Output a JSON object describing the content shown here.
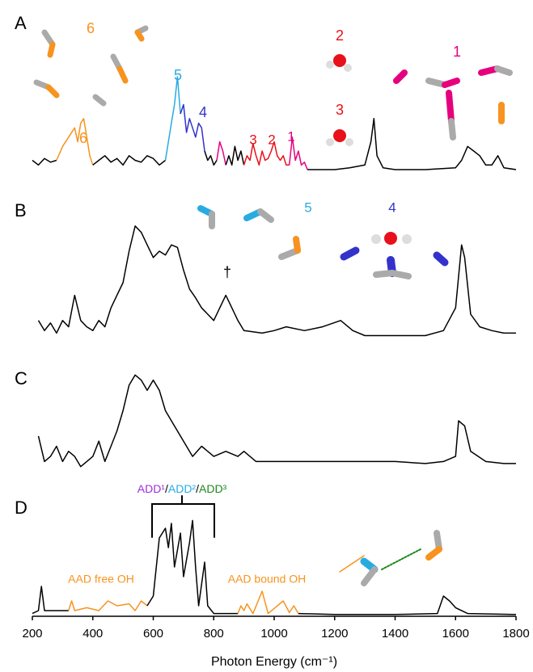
{
  "chart_data": [
    {
      "type": "line",
      "panel_label": "A",
      "xlim": [
        200,
        1800
      ],
      "ylim": [
        0,
        1
      ],
      "series": [
        {
          "color": "#000000",
          "x": [
            200,
            220,
            240,
            260,
            280
          ],
          "values": [
            0.1,
            0.05,
            0.12,
            0.08,
            0.1
          ]
        },
        {
          "color": "#f7931e",
          "x": [
            280,
            300,
            320,
            340,
            350,
            360,
            370,
            380,
            390,
            400
          ],
          "values": [
            0.1,
            0.25,
            0.35,
            0.45,
            0.3,
            0.5,
            0.55,
            0.35,
            0.15,
            0.05
          ]
        },
        {
          "color": "#000000",
          "x": [
            400,
            420,
            440,
            460,
            480,
            500,
            520,
            540,
            560,
            580,
            600,
            620,
            640
          ],
          "values": [
            0.05,
            0.1,
            0.15,
            0.08,
            0.12,
            0.05,
            0.15,
            0.1,
            0.08,
            0.15,
            0.12,
            0.05,
            0.1
          ]
        },
        {
          "color": "#29abe2",
          "x": [
            640,
            650,
            660,
            670,
            680,
            690
          ],
          "values": [
            0.1,
            0.3,
            0.5,
            0.7,
            1.0,
            0.6
          ]
        },
        {
          "color": "#3333cc",
          "x": [
            690,
            700,
            710,
            720,
            730,
            740,
            750,
            760,
            770
          ],
          "values": [
            0.6,
            0.7,
            0.4,
            0.55,
            0.45,
            0.35,
            0.5,
            0.45,
            0.2
          ]
        },
        {
          "color": "#000000",
          "x": [
            770,
            780,
            790,
            800,
            810
          ],
          "values": [
            0.2,
            0.1,
            0.15,
            0.05,
            0.1
          ]
        },
        {
          "color": "#e6007e",
          "x": [
            810,
            820,
            830,
            840
          ],
          "values": [
            0.1,
            0.3,
            0.2,
            0.05
          ]
        },
        {
          "color": "#000000",
          "x": [
            840,
            850,
            860,
            870,
            880,
            890,
            900
          ],
          "values": [
            0.05,
            0.15,
            0.05,
            0.25,
            0.1,
            0.2,
            0.05
          ]
        },
        {
          "color": "#e8101a",
          "x": [
            900,
            910,
            920,
            930,
            940,
            950,
            960,
            970,
            980,
            990,
            1000,
            1010,
            1020,
            1030,
            1040,
            1050
          ],
          "values": [
            0.05,
            0.15,
            0.1,
            0.28,
            0.15,
            0.05,
            0.2,
            0.1,
            0.12,
            0.2,
            0.3,
            0.15,
            0.1,
            0.15,
            0.05,
            0.05
          ]
        },
        {
          "color": "#e6007e",
          "x": [
            1050,
            1060,
            1070,
            1080,
            1090,
            1100,
            1110
          ],
          "values": [
            0.05,
            0.35,
            0.1,
            0.2,
            0.05,
            0.08,
            0
          ]
        },
        {
          "color": "#000000",
          "x": [
            1110,
            1150,
            1200,
            1250,
            1300,
            1320,
            1330,
            1340,
            1360,
            1400,
            1500,
            1600,
            1620,
            1640,
            1660,
            1680,
            1700,
            1720,
            1740,
            1760,
            1800
          ],
          "values": [
            0,
            0,
            0,
            0.02,
            0.05,
            0.3,
            0.55,
            0.15,
            0.02,
            0,
            0,
            0.02,
            0.1,
            0.25,
            0.2,
            0.15,
            0.05,
            0.05,
            0.15,
            0.02,
            0
          ]
        }
      ],
      "annotations": [
        {
          "text": "6",
          "color": "#f7931e"
        },
        {
          "text": "6",
          "color": "#f7931e"
        },
        {
          "text": "5",
          "color": "#29abe2"
        },
        {
          "text": "4",
          "color": "#3333cc"
        },
        {
          "text": "3",
          "color": "#e8101a"
        },
        {
          "text": "2",
          "color": "#e8101a"
        },
        {
          "text": "1",
          "color": "#e6007e"
        },
        {
          "text": "2",
          "color": "#e8101a"
        },
        {
          "text": "3",
          "color": "#e8101a"
        },
        {
          "text": "1",
          "color": "#e6007e"
        }
      ]
    },
    {
      "type": "line",
      "panel_label": "B",
      "xlim": [
        200,
        1800
      ],
      "ylim": [
        0,
        1
      ],
      "color": "#000000",
      "x": [
        220,
        240,
        260,
        280,
        300,
        320,
        340,
        360,
        380,
        400,
        420,
        440,
        460,
        480,
        500,
        520,
        540,
        560,
        580,
        600,
        620,
        640,
        660,
        680,
        700,
        720,
        740,
        760,
        780,
        800,
        820,
        840,
        860,
        880,
        900,
        960,
        1000,
        1040,
        1100,
        1160,
        1220,
        1260,
        1300,
        1400,
        1500,
        1560,
        1600,
        1620,
        1630,
        1650,
        1680,
        1720,
        1760,
        1800
      ],
      "values": [
        0.2,
        0.12,
        0.18,
        0.1,
        0.2,
        0.15,
        0.4,
        0.2,
        0.15,
        0.12,
        0.2,
        0.15,
        0.3,
        0.4,
        0.5,
        0.75,
        0.95,
        0.9,
        0.8,
        0.7,
        0.75,
        0.72,
        0.8,
        0.78,
        0.6,
        0.45,
        0.38,
        0.3,
        0.25,
        0.2,
        0.3,
        0.4,
        0.3,
        0.2,
        0.12,
        0.1,
        0.12,
        0.15,
        0.12,
        0.15,
        0.2,
        0.12,
        0.08,
        0.08,
        0.08,
        0.12,
        0.3,
        0.8,
        0.7,
        0.25,
        0.15,
        0.12,
        0.1,
        0.1
      ],
      "annotations": [
        {
          "text": "5",
          "color": "#29abe2"
        },
        {
          "text": "4",
          "color": "#3333cc"
        },
        {
          "text": "†",
          "color": "#000000"
        }
      ]
    },
    {
      "type": "line",
      "panel_label": "C",
      "xlim": [
        200,
        1800
      ],
      "ylim": [
        0,
        1
      ],
      "color": "#000000",
      "x": [
        220,
        240,
        260,
        280,
        300,
        320,
        340,
        360,
        380,
        400,
        420,
        440,
        460,
        480,
        500,
        520,
        540,
        560,
        580,
        600,
        620,
        640,
        660,
        700,
        730,
        760,
        800,
        840,
        880,
        900,
        940,
        1000,
        1100,
        1200,
        1300,
        1400,
        1500,
        1560,
        1600,
        1610,
        1630,
        1650,
        1700,
        1760,
        1800
      ],
      "values": [
        0.35,
        0.1,
        0.15,
        0.25,
        0.1,
        0.2,
        0.15,
        0.05,
        0.1,
        0.15,
        0.3,
        0.1,
        0.25,
        0.4,
        0.6,
        0.85,
        0.95,
        0.9,
        0.8,
        0.9,
        0.8,
        0.6,
        0.5,
        0.3,
        0.15,
        0.25,
        0.15,
        0.2,
        0.15,
        0.2,
        0.1,
        0.1,
        0.1,
        0.1,
        0.1,
        0.1,
        0.08,
        0.1,
        0.15,
        0.5,
        0.45,
        0.2,
        0.1,
        0.08,
        0.08
      ],
      "annotations": []
    },
    {
      "type": "line",
      "panel_label": "D",
      "xlim": [
        200,
        1800
      ],
      "ylim": [
        0,
        1
      ],
      "xticks": [
        200,
        400,
        600,
        800,
        1000,
        1200,
        1400,
        1600,
        1800
      ],
      "xlabel": "Photon Energy (cm⁻¹)",
      "series": [
        {
          "color": "#000000",
          "x": [
            200,
            220,
            230,
            240,
            300,
            320
          ],
          "values": [
            0.02,
            0.05,
            0.3,
            0.05,
            0.05,
            0.05
          ]
        },
        {
          "color": "#f7931e",
          "x": [
            320,
            330,
            340,
            380,
            420,
            450,
            480,
            520,
            540,
            560,
            580
          ],
          "values": [
            0.05,
            0.15,
            0.05,
            0.08,
            0.05,
            0.15,
            0.1,
            0.12,
            0.05,
            0.15,
            0.1
          ]
        },
        {
          "color": "#000000",
          "x": [
            580,
            600,
            620,
            640,
            650,
            660,
            670,
            690,
            700,
            720,
            730,
            740,
            750,
            770,
            780,
            800,
            880
          ],
          "values": [
            0.1,
            0.2,
            0.8,
            0.9,
            0.7,
            0.95,
            0.5,
            0.85,
            0.4,
            0.75,
            0.98,
            0.5,
            0.1,
            0.55,
            0.1,
            0.02,
            0.02
          ]
        },
        {
          "color": "#f7931e",
          "x": [
            880,
            890,
            900,
            910,
            930,
            960,
            980,
            1030,
            1050,
            1065,
            1080
          ],
          "values": [
            0.02,
            0.1,
            0.05,
            0.12,
            0.02,
            0.25,
            0.02,
            0.15,
            0.03,
            0.1,
            0.02
          ]
        },
        {
          "color": "#000000",
          "x": [
            1080,
            1200,
            1400,
            1540,
            1560,
            1580,
            1600,
            1640,
            1800
          ],
          "values": [
            0.02,
            0.01,
            0.01,
            0.02,
            0.2,
            0.15,
            0.08,
            0.02,
            0.01
          ]
        }
      ],
      "annotations": [
        {
          "parts": [
            {
              "text": "ADD¹",
              "color": "#9b30d9"
            },
            {
              "text": "/",
              "color": "#000000"
            },
            {
              "text": "ADD²",
              "color": "#29abe2"
            },
            {
              "text": "/",
              "color": "#000000"
            },
            {
              "text": "ADD³",
              "color": "#1a8a1a"
            }
          ]
        },
        {
          "text": "AAD free OH",
          "color": "#f7931e"
        },
        {
          "text": "AAD bound OH",
          "color": "#f7931e"
        }
      ]
    }
  ]
}
